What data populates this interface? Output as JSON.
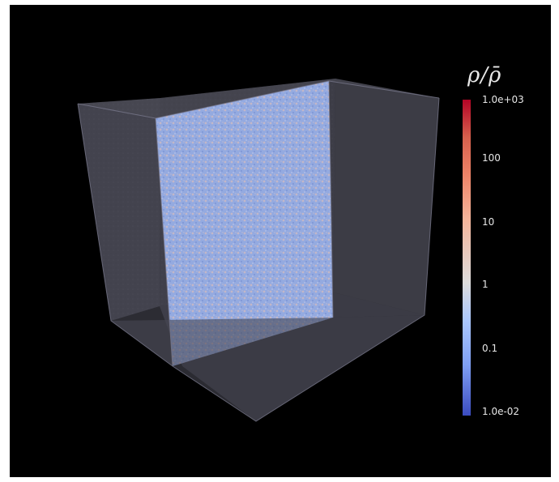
{
  "colorbar": {
    "title": "ρ/ρ̄",
    "ticks": [
      "1.0e+03",
      "100",
      "10",
      "1",
      "0.1",
      "1.0e-02"
    ],
    "scale": "log",
    "range": [
      0.01,
      1000
    ],
    "colormap": [
      "#3b4cc0",
      "#dddcdc",
      "#b40426"
    ]
  },
  "colors": {
    "background": "#000000",
    "cube_faces": "#3a3a44",
    "slice": "#8aa4dd"
  }
}
